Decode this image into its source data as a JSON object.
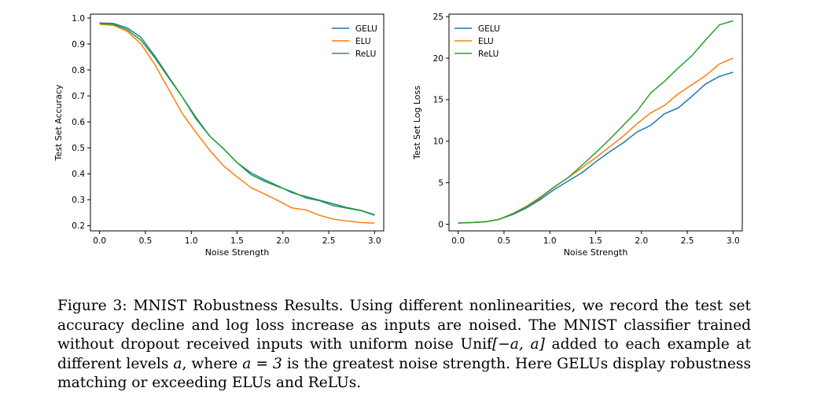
{
  "chart_data": [
    {
      "type": "line",
      "title": "",
      "xlabel": "Noise Strength",
      "ylabel": "Test Set Accuracy",
      "xlim": [
        -0.1,
        3.1
      ],
      "ylim": [
        0.18,
        1.015
      ],
      "xticks": [
        0.0,
        0.5,
        1.0,
        1.5,
        2.0,
        2.5,
        3.0
      ],
      "xtick_labels": [
        "0.0",
        "0.5",
        "1.0",
        "1.5",
        "2.0",
        "2.5",
        "3.0"
      ],
      "yticks": [
        0.2,
        0.3,
        0.4,
        0.5,
        0.6,
        0.7,
        0.8,
        0.9,
        1.0
      ],
      "ytick_labels": [
        "0.2",
        "0.3",
        "0.4",
        "0.5",
        "0.6",
        "0.7",
        "0.8",
        "0.9",
        "1.0"
      ],
      "legend_position": "top-right",
      "grid": false,
      "x": [
        0.0,
        0.15,
        0.3,
        0.45,
        0.6,
        0.75,
        0.9,
        1.05,
        1.2,
        1.35,
        1.5,
        1.65,
        1.8,
        1.95,
        2.1,
        2.25,
        2.4,
        2.55,
        2.7,
        2.85,
        3.0
      ],
      "series": [
        {
          "name": "GELU",
          "color": "#1f77b4",
          "values": [
            0.981,
            0.979,
            0.962,
            0.926,
            0.855,
            0.775,
            0.697,
            0.618,
            0.546,
            0.497,
            0.443,
            0.404,
            0.377,
            0.352,
            0.327,
            0.312,
            0.298,
            0.284,
            0.27,
            0.259,
            0.242
          ]
        },
        {
          "name": "ELU",
          "color": "#ff7f0e",
          "values": [
            0.976,
            0.972,
            0.949,
            0.901,
            0.822,
            0.728,
            0.633,
            0.56,
            0.491,
            0.431,
            0.388,
            0.347,
            0.322,
            0.296,
            0.268,
            0.261,
            0.24,
            0.225,
            0.218,
            0.212,
            0.21
          ]
        },
        {
          "name": "ReLU",
          "color": "#2ca02c",
          "values": [
            0.978,
            0.976,
            0.955,
            0.915,
            0.848,
            0.771,
            0.697,
            0.612,
            0.546,
            0.497,
            0.443,
            0.397,
            0.371,
            0.35,
            0.331,
            0.307,
            0.296,
            0.277,
            0.267,
            0.258,
            0.24
          ]
        }
      ]
    },
    {
      "type": "line",
      "title": "",
      "xlabel": "Noise Strength",
      "ylabel": "Test Set Log Loss",
      "xlim": [
        -0.1,
        3.1
      ],
      "ylim": [
        -0.8,
        25.3
      ],
      "xticks": [
        0.0,
        0.5,
        1.0,
        1.5,
        2.0,
        2.5,
        3.0
      ],
      "xtick_labels": [
        "0.0",
        "0.5",
        "1.0",
        "1.5",
        "2.0",
        "2.5",
        "3.0"
      ],
      "yticks": [
        0,
        5,
        10,
        15,
        20,
        25
      ],
      "ytick_labels": [
        "0",
        "5",
        "10",
        "15",
        "20",
        "25"
      ],
      "legend_position": "top-left",
      "grid": false,
      "x": [
        0.0,
        0.15,
        0.3,
        0.45,
        0.6,
        0.75,
        0.9,
        1.05,
        1.2,
        1.35,
        1.5,
        1.65,
        1.8,
        1.95,
        2.1,
        2.25,
        2.4,
        2.55,
        2.7,
        2.85,
        3.0
      ],
      "series": [
        {
          "name": "GELU",
          "color": "#1f77b4",
          "values": [
            0.15,
            0.2,
            0.3,
            0.6,
            1.2,
            2.0,
            3.0,
            4.2,
            5.2,
            6.2,
            7.5,
            8.7,
            9.8,
            11.1,
            11.9,
            13.3,
            14.0,
            15.4,
            16.9,
            17.8,
            18.3
          ]
        },
        {
          "name": "ELU",
          "color": "#ff7f0e",
          "values": [
            0.15,
            0.2,
            0.3,
            0.6,
            1.3,
            2.2,
            3.3,
            4.5,
            5.6,
            6.8,
            8.0,
            9.3,
            10.6,
            12.1,
            13.4,
            14.3,
            15.7,
            16.8,
            17.9,
            19.3,
            20.0
          ]
        },
        {
          "name": "ReLU",
          "color": "#2ca02c",
          "values": [
            0.15,
            0.2,
            0.3,
            0.6,
            1.3,
            2.1,
            3.2,
            4.5,
            5.6,
            7.1,
            8.6,
            10.2,
            11.9,
            13.6,
            15.8,
            17.2,
            18.8,
            20.3,
            22.2,
            24.0,
            24.5
          ]
        }
      ]
    }
  ],
  "caption": {
    "label": "Figure 3:",
    "text_1": "MNIST Robustness Results. Using different nonlinearities, we record the test set accuracy decline and log loss increase as inputs are noised. The MNIST classifier trained without dropout received inputs with uniform noise Unif",
    "math_1": "[−a, a]",
    "text_2": "added to each example at different levels",
    "math_2": "a",
    "text_3": ", where",
    "math_3": "a = 3",
    "text_4": "is the greatest noise strength. Here GELUs display robustness matching or exceeding ELUs and ReLUs."
  }
}
